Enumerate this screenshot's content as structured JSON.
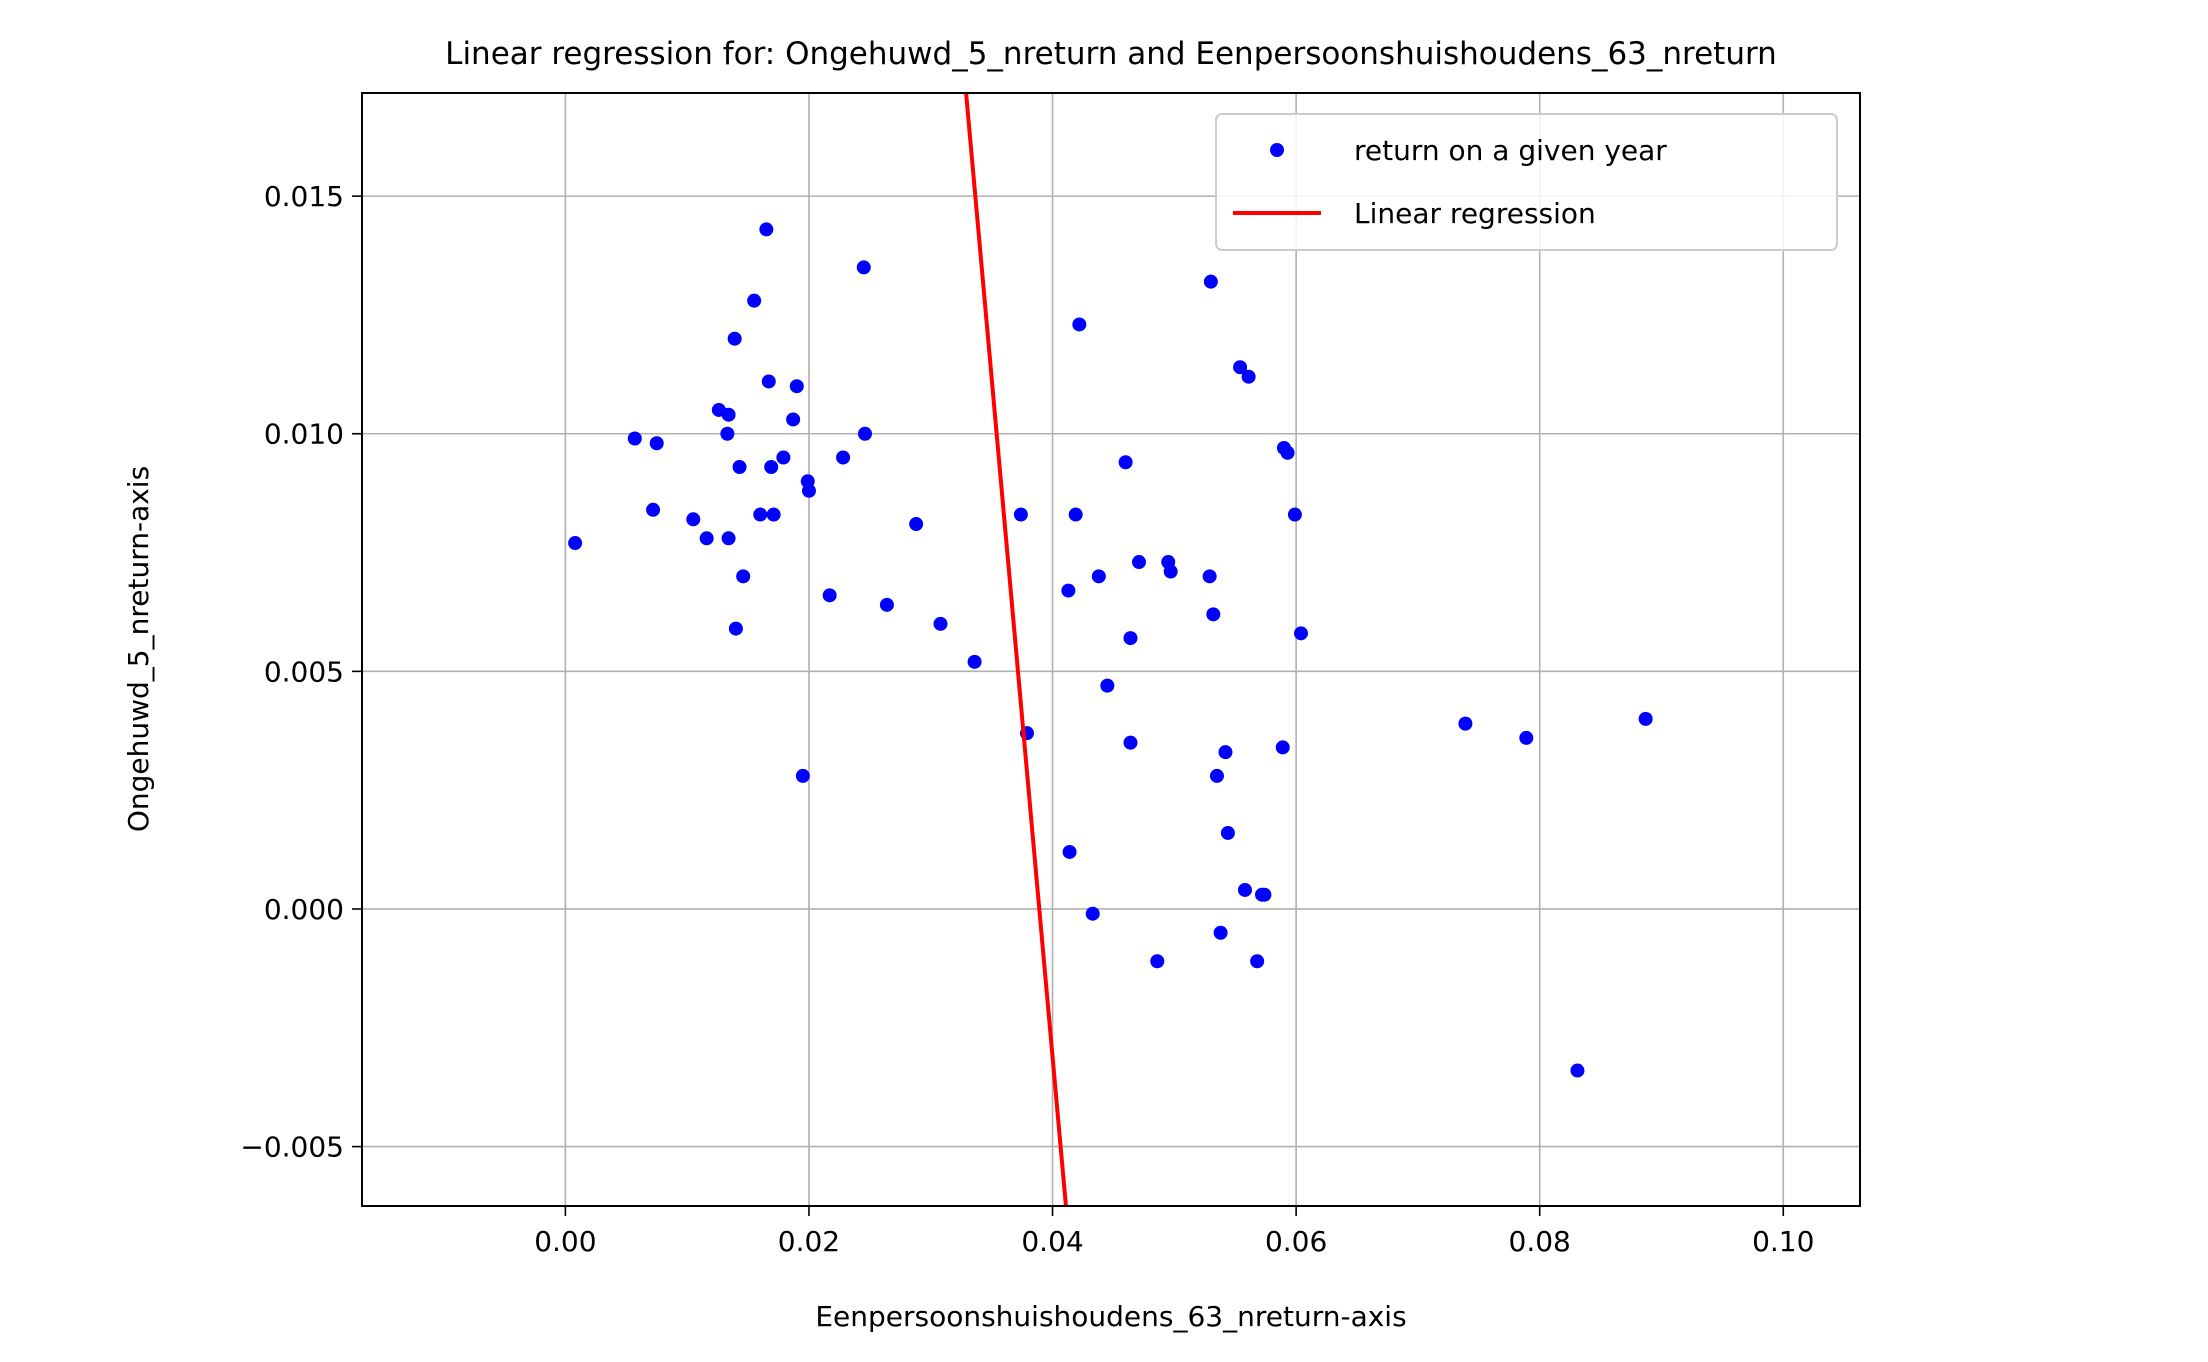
{
  "chart_data": {
    "type": "scatter",
    "title": "Linear regression for: Ongehuwd_5_nreturn and Eenpersoonshuishoudens_63_nreturn",
    "xlabel": "Eenpersoonshuishoudens_63_nreturn-axis",
    "ylabel": "Ongehuwd_5_nreturn-axis",
    "xlim": [
      -0.0167,
      0.1063
    ],
    "ylim": [
      -0.00625,
      0.01717
    ],
    "x_ticks": [
      0.0,
      0.02,
      0.04,
      0.06,
      0.08,
      0.1
    ],
    "x_tick_labels": [
      "0.00",
      "0.02",
      "0.04",
      "0.06",
      "0.08",
      "0.10"
    ],
    "y_ticks": [
      -0.005,
      0.0,
      0.005,
      0.01,
      0.015
    ],
    "y_tick_labels": [
      "−0.005",
      "0.000",
      "0.005",
      "0.010",
      "0.015"
    ],
    "grid": true,
    "legend_position": "top-right",
    "colors": {
      "points": "#0000ff",
      "line": "#ff0000"
    },
    "series": [
      {
        "name": "return on a given year",
        "kind": "scatter",
        "x": [
          0.0008,
          0.0057,
          0.0072,
          0.0075,
          0.0105,
          0.0116,
          0.0126,
          0.0133,
          0.0134,
          0.0134,
          0.0139,
          0.014,
          0.0143,
          0.0146,
          0.0155,
          0.016,
          0.0165,
          0.0167,
          0.0169,
          0.0171,
          0.0179,
          0.0187,
          0.019,
          0.0195,
          0.0199,
          0.02,
          0.0217,
          0.0228,
          0.0245,
          0.0246,
          0.0264,
          0.0288,
          0.0308,
          0.0336,
          0.0374,
          0.0379,
          0.0413,
          0.0414,
          0.0419,
          0.0422,
          0.0433,
          0.0438,
          0.0445,
          0.046,
          0.0464,
          0.0464,
          0.0471,
          0.0486,
          0.0495,
          0.0497,
          0.0529,
          0.053,
          0.0532,
          0.0535,
          0.0538,
          0.0542,
          0.0544,
          0.0554,
          0.0558,
          0.0561,
          0.0568,
          0.0572,
          0.0574,
          0.0589,
          0.059,
          0.0593,
          0.0599,
          0.0604,
          0.0739,
          0.0789,
          0.0831,
          0.0887
        ],
        "y": [
          0.0077,
          0.0099,
          0.0084,
          0.0098,
          0.0082,
          0.0078,
          0.0105,
          0.01,
          0.0104,
          0.0078,
          0.012,
          0.0059,
          0.0093,
          0.007,
          0.0128,
          0.0083,
          0.0143,
          0.0111,
          0.0093,
          0.0083,
          0.0095,
          0.0103,
          0.011,
          0.0028,
          0.009,
          0.0088,
          0.0066,
          0.0095,
          0.0135,
          0.01,
          0.0064,
          0.0081,
          0.006,
          0.0052,
          0.0083,
          0.0037,
          0.0067,
          0.0012,
          0.0083,
          0.0123,
          -0.0001,
          0.007,
          0.0047,
          0.0094,
          0.0057,
          0.0035,
          0.0073,
          -0.0011,
          0.0073,
          0.0071,
          0.007,
          0.0132,
          0.0062,
          0.0028,
          -0.0005,
          0.0033,
          0.0016,
          0.0114,
          0.0004,
          0.0112,
          -0.0011,
          0.0003,
          0.0003,
          0.0034,
          0.0097,
          0.0096,
          0.0083,
          0.0058,
          0.0039,
          0.0036,
          -0.0034,
          0.004
        ]
      },
      {
        "name": "Linear regression",
        "kind": "line",
        "x": [
          0.0329,
          0.0411
        ],
        "y": [
          0.01717,
          -0.00625
        ]
      }
    ]
  }
}
